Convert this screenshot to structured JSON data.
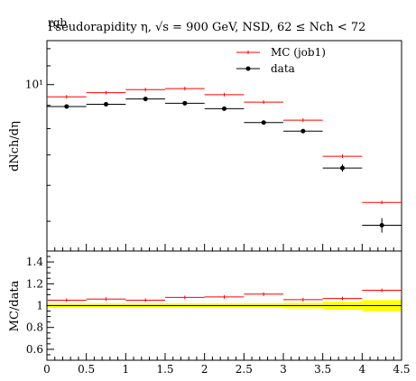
{
  "header": {
    "overlap_text": "rgb",
    "title": "Pseudorapidity η, √s = 900 GeV, NSD, 62 ≤ Nch < 72"
  },
  "legend": {
    "mc_label": "MC (job1)",
    "data_label": "data"
  },
  "colors": {
    "mc": "#ff0000",
    "data": "#000000",
    "band": "#ffff00"
  },
  "chart_data": [
    {
      "type": "line",
      "title": "Pseudorapidity η, √s = 900 GeV, NSD, 62 ≤ Nch < 72",
      "xlabel": "",
      "ylabel": "dNch/dη",
      "y_scale": "log",
      "yticks": [
        "10¹"
      ],
      "xlim": [
        0,
        4.5
      ],
      "ylim": [
        4.3,
        12.5
      ],
      "x_edges": [
        0,
        0.5,
        1,
        1.5,
        2,
        2.5,
        3,
        3.5,
        4,
        4.5
      ],
      "series": [
        {
          "name": "MC (job1)",
          "values": [
            9.4,
            9.6,
            9.75,
            9.8,
            9.5,
            9.15,
            8.35,
            6.95,
            5.5
          ]
        },
        {
          "name": "data",
          "values": [
            8.95,
            9.05,
            9.3,
            9.1,
            8.85,
            8.25,
            7.9,
            6.55,
            4.9
          ],
          "yerr": [
            0.05,
            0.05,
            0.05,
            0.05,
            0.05,
            0.05,
            0.08,
            0.12,
            0.18
          ]
        }
      ],
      "legend_position": "top-right"
    },
    {
      "type": "line",
      "xlabel": "",
      "ylabel": "MC/data",
      "xlim": [
        0,
        4.5
      ],
      "ylim": [
        0.5,
        1.5
      ],
      "xticks": [
        "0",
        "0.5",
        "1",
        "1.5",
        "2",
        "2.5",
        "3",
        "3.5",
        "4",
        "4.5"
      ],
      "yticks": [
        "0.6",
        "0.8",
        "1",
        "1.2",
        "1.4"
      ],
      "series": [
        {
          "name": "MC (job1)",
          "values": [
            1.05,
            1.06,
            1.05,
            1.075,
            1.08,
            1.105,
            1.055,
            1.065,
            1.14
          ]
        }
      ],
      "band_halfwidth": [
        0.02,
        0.02,
        0.02,
        0.02,
        0.02,
        0.02,
        0.025,
        0.035,
        0.05
      ]
    }
  ]
}
